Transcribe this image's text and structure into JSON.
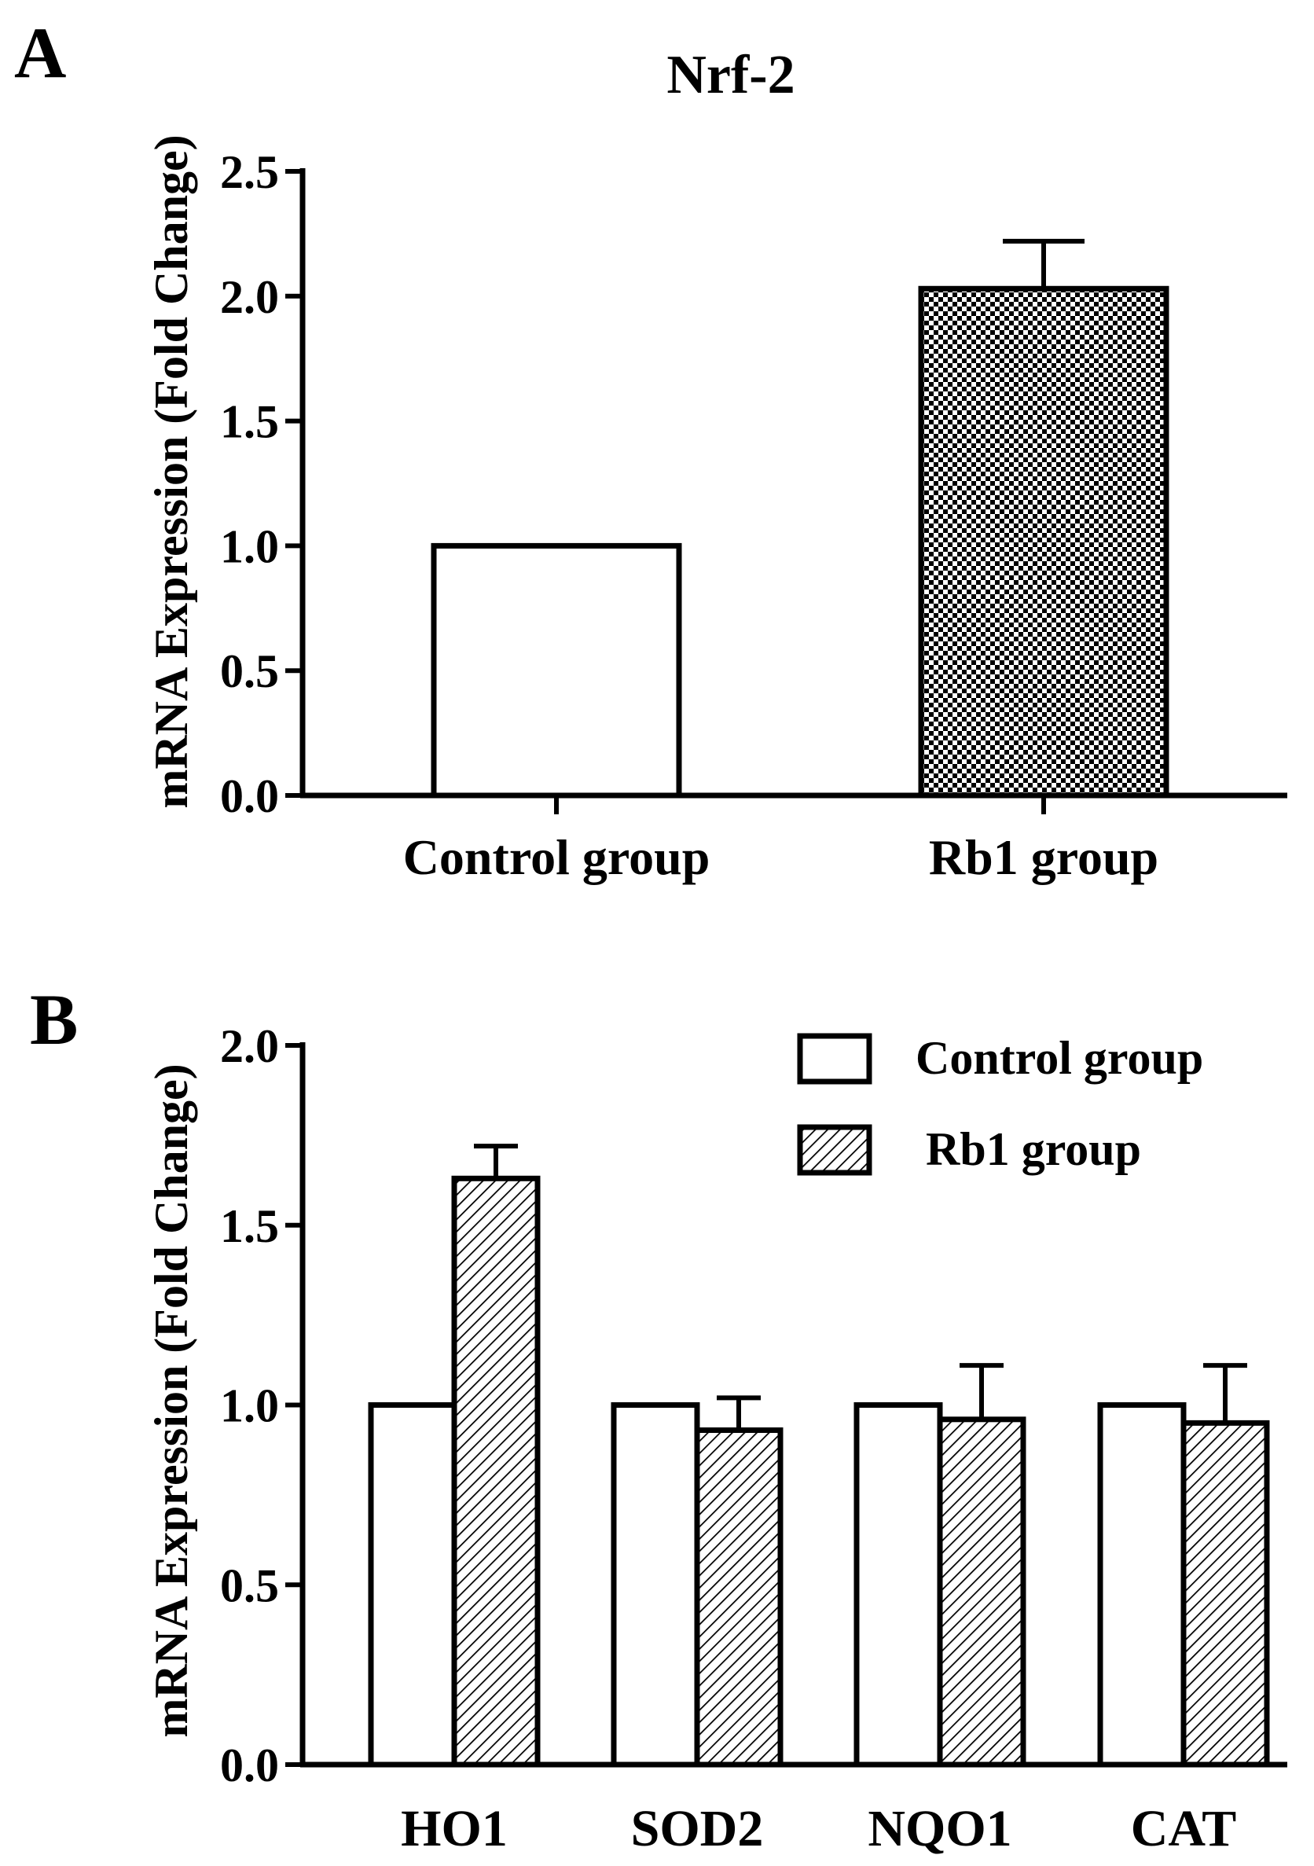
{
  "panels": [
    {
      "panel_label": "A",
      "type": "bar",
      "title": "Nrf-2",
      "ylabel": "mRNA Expression (Fold Change)",
      "xlabel": "",
      "ylim": [
        0,
        2.5
      ],
      "yticks": [
        "0.0",
        "0.5",
        "1.0",
        "1.5",
        "2.0",
        "2.5"
      ],
      "categories": [
        "Control group",
        "Rb1 group"
      ],
      "values": [
        1.0,
        2.03
      ],
      "errors": [
        0,
        0.19
      ],
      "patterns": [
        "none",
        "checker"
      ]
    },
    {
      "panel_label": "B",
      "type": "bar",
      "title": "",
      "ylabel": "mRNA Expression (Fold Change)",
      "xlabel": "",
      "ylim": [
        0,
        2.0
      ],
      "yticks": [
        "0.0",
        "0.5",
        "1.0",
        "1.5",
        "2.0"
      ],
      "categories": [
        "HO1",
        "SOD2",
        "NQO1",
        "CAT"
      ],
      "series": [
        {
          "name": "Control group",
          "values": [
            1.0,
            1.0,
            1.0,
            1.0
          ],
          "errors": [
            0,
            0,
            0,
            0
          ],
          "pattern": "none"
        },
        {
          "name": "Rb1 group",
          "values": [
            1.63,
            0.93,
            0.96,
            0.95
          ],
          "errors": [
            0.09,
            0.09,
            0.15,
            0.16
          ],
          "pattern": "hatch"
        }
      ],
      "legend_position": "top-right"
    }
  ]
}
